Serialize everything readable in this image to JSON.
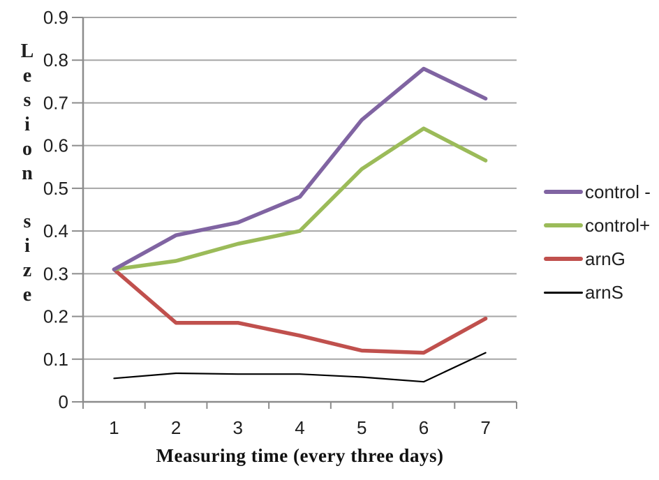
{
  "chart_data": {
    "type": "line",
    "title": "",
    "xlabel": "Measuring  time (every three days)",
    "ylabel": "Lesion size",
    "x": [
      1,
      2,
      3,
      4,
      5,
      6,
      7
    ],
    "xtick_labels": [
      "1",
      "2",
      "3",
      "4",
      "5",
      "6",
      "7"
    ],
    "ylim": [
      0,
      0.9
    ],
    "ytick_step": 0.1,
    "ytick_labels": [
      "0",
      "0.1",
      "0.2",
      "0.3",
      "0.4",
      "0.5",
      "0.6",
      "0.7",
      "0.8",
      "0.9"
    ],
    "grid": true,
    "legend_position": "right",
    "series": [
      {
        "name": "control -",
        "color": "#8064A2",
        "line_width": 5.5,
        "values": [
          0.31,
          0.39,
          0.42,
          0.48,
          0.66,
          0.78,
          0.71
        ]
      },
      {
        "name": "control+",
        "color": "#9BBB59",
        "line_width": 5.5,
        "values": [
          0.31,
          0.33,
          0.37,
          0.4,
          0.545,
          0.64,
          0.565
        ]
      },
      {
        "name": "arnG",
        "color": "#C0504D",
        "line_width": 5.5,
        "values": [
          0.31,
          0.185,
          0.185,
          0.155,
          0.12,
          0.115,
          0.195
        ]
      },
      {
        "name": "arnS",
        "color": "#000000",
        "line_width": 2.2,
        "values": [
          0.055,
          0.067,
          0.065,
          0.065,
          0.058,
          0.047,
          0.115
        ]
      }
    ],
    "colors": {
      "gridline": "#A6A6A6",
      "axis": "#8C8C8C",
      "text": "#1f1f1f",
      "background": "#ffffff"
    }
  }
}
